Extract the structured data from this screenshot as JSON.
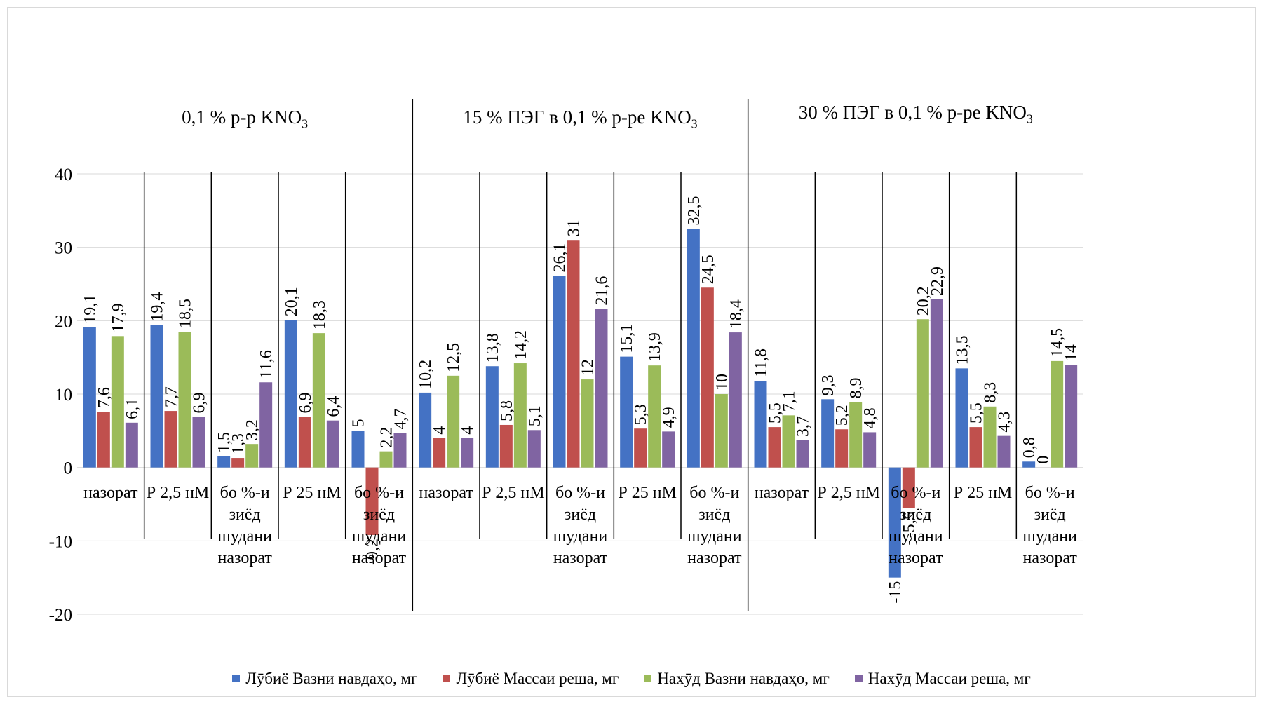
{
  "chart_data": {
    "type": "bar",
    "ylim": [
      -20,
      40
    ],
    "yticks": [
      -20,
      -10,
      0,
      10,
      20,
      30,
      40
    ],
    "grid": true,
    "legend_position": "bottom",
    "groups": [
      {
        "title_main": "0,1 % р-р KNO",
        "title_sub": "3",
        "categories": [
          [
            "назорат"
          ],
          [
            "Р 2,5 нМ"
          ],
          [
            "бо %-и",
            "зиёд",
            "шудани",
            "назорат"
          ],
          [
            "Р  25 нМ"
          ],
          [
            "бо %-и",
            "зиёд",
            "шудани",
            "назорат"
          ]
        ]
      },
      {
        "title_main": "15 % ПЭГ в 0,1 % р-ре KNO",
        "title_sub": "3",
        "categories": [
          [
            "назорат"
          ],
          [
            "Р 2,5 нМ"
          ],
          [
            "бо %-и",
            "зиёд",
            "шудани",
            "назорат"
          ],
          [
            "Р  25 нМ"
          ],
          [
            "бо %-и",
            "зиёд",
            "шудани",
            "назорат"
          ]
        ]
      },
      {
        "title_main": "30 % ПЭГ в 0,1 % р-ре KNO",
        "title_sub": "3",
        "categories": [
          [
            "назорат"
          ],
          [
            "Р 2,5 нМ"
          ],
          [
            "бо %-и",
            "зиёд",
            "шудани",
            "назорат"
          ],
          [
            "Р  25 нМ"
          ],
          [
            "бо %-и",
            "зиёд",
            "шудани",
            "назорат"
          ]
        ]
      }
    ],
    "series": [
      {
        "name": "Лӯбиё Вазни навдаҳо, мг",
        "color": "#4472c4",
        "values": [
          19.1,
          19.4,
          1.5,
          20.1,
          5,
          10.2,
          13.8,
          26.1,
          15.1,
          32.5,
          11.8,
          9.3,
          -15,
          13.5,
          0.8
        ],
        "labels": [
          "19,1",
          "19,4",
          "1,5",
          "20,1",
          "5",
          "10,2",
          "13,8",
          "26,1",
          "15,1",
          "32,5",
          "11,8",
          "9,3",
          "-15",
          "13,5",
          "0,8"
        ]
      },
      {
        "name": "Лӯбиё Массаи реша, мг",
        "color": "#c0504d",
        "values": [
          7.6,
          7.7,
          1.3,
          6.9,
          -9.2,
          4,
          5.8,
          31,
          5.3,
          24.5,
          5.5,
          5.2,
          -5.5,
          5.5,
          0
        ],
        "labels": [
          "7,6",
          "7,7",
          "1,3",
          "6,9",
          "-9,2",
          "4",
          "5,8",
          "31",
          "5,3",
          "24,5",
          "5,5",
          "5,2",
          "-5,5",
          "5,5",
          "0"
        ]
      },
      {
        "name": "Нахӯд Вазни навдаҳо, мг",
        "color": "#9bbb59",
        "values": [
          17.9,
          18.5,
          3.2,
          18.3,
          2.2,
          12.5,
          14.2,
          12,
          13.9,
          10,
          7.1,
          8.9,
          20.2,
          8.3,
          14.5
        ],
        "labels": [
          "17,9",
          "18,5",
          "3,2",
          "18,3",
          "2,2",
          "12,5",
          "14,2",
          "12",
          "13,9",
          "10",
          "7,1",
          "8,9",
          "20,2",
          "8,3",
          "14,5"
        ]
      },
      {
        "name": "Нахӯд Массаи реша, мг",
        "color": "#8064a2",
        "values": [
          6.1,
          6.9,
          11.6,
          6.4,
          4.7,
          4,
          5.1,
          21.6,
          4.9,
          18.4,
          3.7,
          4.8,
          22.9,
          4.3,
          14
        ],
        "labels": [
          "6,1",
          "6,9",
          "11,6",
          "6,4",
          "4,7",
          "4",
          "5,1",
          "21,6",
          "4,9",
          "18,4",
          "3,7",
          "4,8",
          "22,9",
          "4,3",
          "14"
        ]
      }
    ]
  }
}
